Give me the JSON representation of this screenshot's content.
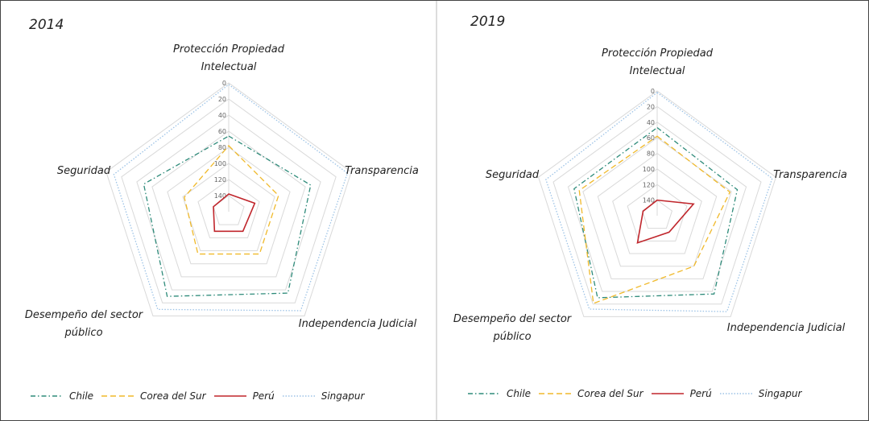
{
  "chart_data": [
    {
      "type": "radar",
      "title": "2014",
      "categories": [
        "Protección Propiedad Intelectual",
        "Transparencia",
        "Independencia Judicial",
        "Desempeño del sector público",
        "Seguridad"
      ],
      "ylim": [
        0,
        160
      ],
      "reversed": true,
      "yticks": [
        0,
        20,
        40,
        60,
        80,
        100,
        120,
        140
      ],
      "grid": true,
      "legend": "bottom",
      "series": [
        {
          "name": "Chile",
          "color": "#2e8b7a",
          "line_style": "dash-dot",
          "values": [
            66,
            53,
            35,
            30,
            49
          ]
        },
        {
          "name": "Corea del Sur",
          "color": "#f0b92a",
          "line_style": "dashed",
          "values": [
            78,
            95,
            95,
            95,
            102
          ]
        },
        {
          "name": "Perú",
          "color": "#c0262c",
          "line_style": "solid",
          "values": [
            138,
            126,
            130,
            130,
            140
          ]
        },
        {
          "name": "Singapur",
          "color": "#9dc3e6",
          "line_style": "dotted",
          "values": [
            2,
            5,
            8,
            10,
            10
          ]
        }
      ]
    },
    {
      "type": "radar",
      "title": "2019",
      "categories": [
        "Protección Propiedad Intelectual",
        "Transparencia",
        "Independencia Judicial",
        "Desempeño del sector público",
        "Seguridad"
      ],
      "ylim": [
        0,
        160
      ],
      "reversed": true,
      "yticks": [
        0,
        20,
        40,
        60,
        80,
        100,
        120,
        140
      ],
      "grid": true,
      "legend": "bottom",
      "series": [
        {
          "name": "Chile",
          "color": "#2e8b7a",
          "line_style": "dash-dot",
          "values": [
            47,
            52,
            36,
            30,
            48
          ]
        },
        {
          "name": "Corea del Sur",
          "color": "#f0b92a",
          "line_style": "dashed",
          "values": [
            58,
            62,
            80,
            21,
            55
          ]
        },
        {
          "name": "Perú",
          "color": "#c0262c",
          "line_style": "solid",
          "values": [
            140,
            111,
            134,
            117,
            141
          ]
        },
        {
          "name": "Singapur",
          "color": "#9dc3e6",
          "line_style": "dotted",
          "values": [
            2,
            5,
            8,
            12,
            10
          ]
        }
      ]
    }
  ]
}
